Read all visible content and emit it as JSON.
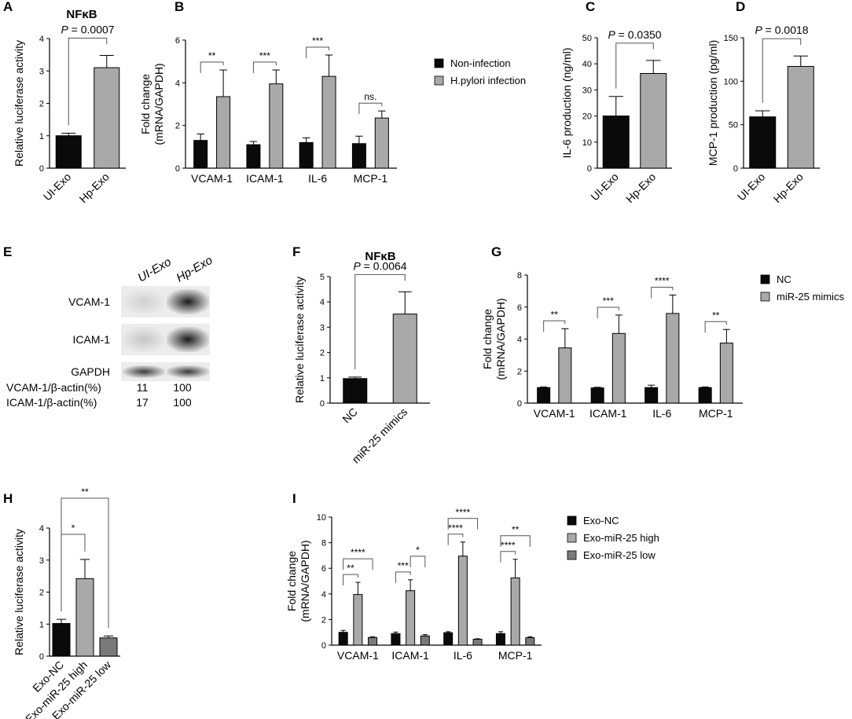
{
  "colors": {
    "black": "#0a0a0a",
    "gray": "#a9a9a9",
    "dark_gray": "#7a7a7a",
    "axis": "#000000",
    "bracket": "#555555"
  },
  "chart_data": [
    {
      "id": "A",
      "letter": "A",
      "type": "bar",
      "title": "NFκB",
      "ylabel": "Relative luciferase activity",
      "categories": [
        "UI-Exo",
        "Hp-Exo"
      ],
      "values": [
        1.0,
        3.1
      ],
      "errors": [
        0.08,
        0.38
      ],
      "colors": [
        "black",
        "gray"
      ],
      "ylim": [
        0,
        4
      ],
      "yticks": [
        0,
        1,
        2,
        3,
        4
      ],
      "annotations": [
        {
          "text": "P = 0.0007",
          "p_label": "P",
          "p_value": "= 0.0007"
        }
      ]
    },
    {
      "id": "B",
      "letter": "B",
      "type": "bar",
      "ylabel": [
        "Fold change",
        "(mRNA/GAPDH)"
      ],
      "categories": [
        "VCAM-1",
        "ICAM-1",
        "IL-6",
        "MCP-1"
      ],
      "series": [
        {
          "name": "Non-infection",
          "color": "black",
          "values": [
            1.3,
            1.1,
            1.2,
            1.15
          ],
          "errors": [
            0.3,
            0.15,
            0.22,
            0.35
          ]
        },
        {
          "name": "H.pylori infection",
          "color": "gray",
          "values": [
            3.35,
            3.95,
            4.3,
            2.35
          ],
          "errors": [
            1.25,
            0.65,
            1.0,
            0.33
          ]
        }
      ],
      "ylim": [
        0,
        6
      ],
      "yticks": [
        0,
        2,
        4,
        6
      ],
      "significance": [
        "**",
        "***",
        "***",
        "ns."
      ]
    },
    {
      "id": "C",
      "letter": "C",
      "type": "bar",
      "ylabel": "IL-6 production (ng/ml)",
      "categories": [
        "UI-Exo",
        "Hp-Exo"
      ],
      "values": [
        20,
        36.3
      ],
      "errors": [
        7.5,
        5.0
      ],
      "colors": [
        "black",
        "gray"
      ],
      "ylim": [
        0,
        50
      ],
      "yticks": [
        0,
        10,
        20,
        30,
        40,
        50
      ],
      "annotations": [
        {
          "text": "P = 0.0350",
          "p_label": "P",
          "p_value": "= 0.0350"
        }
      ]
    },
    {
      "id": "D",
      "letter": "D",
      "type": "bar",
      "ylabel": "MCP-1 production (pg/ml)",
      "categories": [
        "UI-Exo",
        "Hp-Exo"
      ],
      "values": [
        59,
        117
      ],
      "errors": [
        7,
        12
      ],
      "colors": [
        "black",
        "gray"
      ],
      "ylim": [
        0,
        150
      ],
      "yticks": [
        0,
        50,
        100,
        150
      ],
      "annotations": [
        {
          "text": "P = 0.0018",
          "p_label": "P",
          "p_value": "= 0.0018"
        }
      ]
    },
    {
      "id": "F",
      "letter": "F",
      "type": "bar",
      "title": "NFκB",
      "ylabel": "Relative luciferase activity",
      "categories": [
        "NC",
        "miR-25 mimics"
      ],
      "values": [
        0.97,
        3.52
      ],
      "errors": [
        0.06,
        0.88
      ],
      "colors": [
        "black",
        "gray"
      ],
      "ylim": [
        0,
        5
      ],
      "yticks": [
        0,
        1,
        2,
        3,
        4,
        5
      ],
      "annotations": [
        {
          "text": "P = 0.0064",
          "p_label": "P",
          "p_value": "= 0.0064"
        }
      ]
    },
    {
      "id": "G",
      "letter": "G",
      "type": "bar",
      "ylabel": [
        "Fold change",
        "(mRNA/GAPDH)"
      ],
      "categories": [
        "VCAM-1",
        "ICAM-1",
        "IL-6",
        "MCP-1"
      ],
      "series": [
        {
          "name": "NC",
          "color": "black",
          "values": [
            0.97,
            0.95,
            0.97,
            0.97
          ],
          "errors": [
            0.04,
            0.04,
            0.15,
            0.04
          ]
        },
        {
          "name": "miR-25 mimics",
          "color": "gray",
          "values": [
            3.45,
            4.35,
            5.6,
            3.75
          ],
          "errors": [
            1.2,
            1.15,
            1.15,
            0.85
          ]
        }
      ],
      "ylim": [
        0,
        8
      ],
      "yticks": [
        0,
        2,
        4,
        6,
        8
      ],
      "significance": [
        "**",
        "***",
        "****",
        "**"
      ]
    },
    {
      "id": "H",
      "letter": "H",
      "type": "bar",
      "ylabel": "Relative luciferase activity",
      "categories": [
        "Exo-NC",
        "Exo-miR-25 high",
        "Exo-miR-25 low"
      ],
      "values": [
        1.02,
        2.42,
        0.57
      ],
      "errors": [
        0.13,
        0.6,
        0.06
      ],
      "colors": [
        "black",
        "gray",
        "dark_gray"
      ],
      "ylim": [
        0,
        4
      ],
      "yticks": [
        0,
        1,
        2,
        3,
        4
      ],
      "significance": [
        {
          "pair": [
            0,
            1
          ],
          "text": "*"
        },
        {
          "pair": [
            0,
            2
          ],
          "text": "**"
        }
      ]
    },
    {
      "id": "I",
      "letter": "I",
      "type": "bar",
      "ylabel": [
        "Fold change",
        "(mRNA/GAPDH)"
      ],
      "categories": [
        "VCAM-1",
        "ICAM-1",
        "IL-6",
        "MCP-1"
      ],
      "series": [
        {
          "name": "Exo-NC",
          "color": "black",
          "values": [
            1.0,
            0.9,
            0.97,
            0.9
          ],
          "errors": [
            0.15,
            0.12,
            0.08,
            0.15
          ]
        },
        {
          "name": "Exo-miR-25 high",
          "color": "gray",
          "values": [
            3.95,
            4.25,
            6.95,
            5.25
          ],
          "errors": [
            0.95,
            0.85,
            1.1,
            1.45
          ]
        },
        {
          "name": "Exo-miR-25 low",
          "color": "dark_gray",
          "values": [
            0.6,
            0.72,
            0.46,
            0.58
          ],
          "errors": [
            0.05,
            0.1,
            0.04,
            0.08
          ]
        }
      ],
      "ylim": [
        0,
        10
      ],
      "yticks": [
        0,
        2,
        4,
        6,
        8,
        10
      ],
      "significance": [
        {
          "group": 0,
          "pair": [
            0,
            1
          ],
          "text": "**"
        },
        {
          "group": 0,
          "pair": [
            0,
            2
          ],
          "text": "****"
        },
        {
          "group": 1,
          "pair": [
            0,
            1
          ],
          "text": "***"
        },
        {
          "group": 1,
          "pair": [
            1,
            2
          ],
          "text": "*"
        },
        {
          "group": 2,
          "pair": [
            0,
            1
          ],
          "text": "****"
        },
        {
          "group": 2,
          "pair": [
            0,
            2
          ],
          "text": "****"
        },
        {
          "group": 3,
          "pair": [
            0,
            1
          ],
          "text": "****"
        },
        {
          "group": 3,
          "pair": [
            0,
            2
          ],
          "text": "**"
        }
      ]
    }
  ],
  "western_blot": {
    "letter": "E",
    "columns": [
      "UI-Exo",
      "Hp-Exo"
    ],
    "bands": [
      {
        "label": "VCAM-1",
        "intensities": [
          0.1,
          0.95
        ]
      },
      {
        "label": "ICAM-1",
        "intensities": [
          0.15,
          0.95
        ]
      },
      {
        "label": "GAPDH",
        "intensities": [
          0.8,
          0.8
        ]
      }
    ],
    "quant_rows": [
      {
        "label": "VCAM-1/β-actin(%)",
        "values": [
          "11",
          "100"
        ]
      },
      {
        "label": "ICAM-1/β-actin(%)",
        "values": [
          "17",
          "100"
        ]
      }
    ]
  }
}
